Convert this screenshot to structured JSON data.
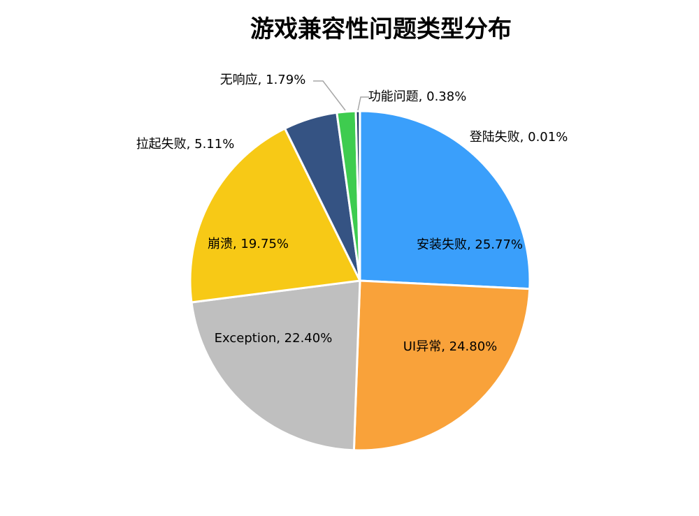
{
  "chart_data": {
    "type": "pie",
    "title": "游戏兼容性问题类型分布",
    "start_angle": "12 o'clock",
    "direction": "clockwise",
    "slices": [
      {
        "label": "安装失败",
        "value": 25.77,
        "display": "安装失败, 25.77%",
        "color": "#3a9ffb"
      },
      {
        "label": "UI异常",
        "value": 24.8,
        "display": "UI异常, 24.80%",
        "color": "#f9a23a"
      },
      {
        "label": "Exception",
        "value": 22.4,
        "display": "Exception, 22.40%",
        "color": "#bfbfbf"
      },
      {
        "label": "崩溃",
        "value": 19.75,
        "display": "崩溃, 19.75%",
        "color": "#f7c916"
      },
      {
        "label": "拉起失败",
        "value": 5.11,
        "display": "拉起失败, 5.11%",
        "color": "#355383"
      },
      {
        "label": "无响应",
        "value": 1.79,
        "display": "无响应, 1.79%",
        "color": "#3ecc4f"
      },
      {
        "label": "功能问题",
        "value": 0.38,
        "display": "功能问题, 0.38%",
        "color": "#1f3864"
      },
      {
        "label": "登陆失败",
        "value": 0.01,
        "display": "登陆失败, 0.01%",
        "color": "#5b9bd5"
      }
    ]
  }
}
